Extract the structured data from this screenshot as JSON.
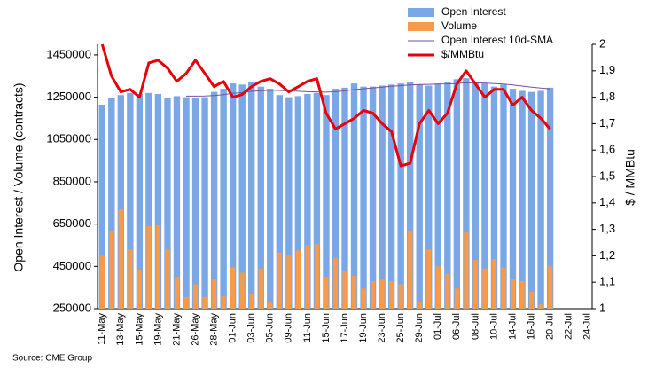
{
  "chart_data": {
    "type": "bar",
    "y_label": "Open Interest / Volume (contracts)",
    "y2_label": "$ / MMBtu",
    "source": "Source: CME Group",
    "categories": [
      "11-May",
      null,
      "13-May",
      null,
      "15-May",
      null,
      "19-May",
      null,
      "21-May",
      null,
      "26-May",
      null,
      "28-May",
      null,
      "01-Jun",
      null,
      "03-Jun",
      null,
      "05-Jun",
      null,
      "09-Jun",
      null,
      "11-Jun",
      null,
      "15-Jun",
      null,
      "17-Jun",
      null,
      "19-Jun",
      null,
      "23-Jun",
      null,
      "25-Jun",
      null,
      "29-Jun",
      null,
      "01-Jul",
      null,
      "06-Jul",
      null,
      "08-Jul",
      null,
      "10-Jul",
      null,
      "14-Jul",
      null,
      "16-Jul",
      null,
      "20-Jul",
      null,
      "22-Jul",
      null,
      "24-Jul"
    ],
    "series": [
      {
        "name": "Open Interest",
        "type": "bar",
        "color": "#7aa7e6",
        "values": [
          1215000,
          1245000,
          1260000,
          1270000,
          1265000,
          1270000,
          1265000,
          1245000,
          1255000,
          1250000,
          1245000,
          1250000,
          1275000,
          1290000,
          1315000,
          1310000,
          1320000,
          1300000,
          1290000,
          1260000,
          1250000,
          1255000,
          1265000,
          1270000,
          1260000,
          1290000,
          1295000,
          1315000,
          1300000,
          1300000,
          1305000,
          1310000,
          1315000,
          1320000,
          1310000,
          1305000,
          1315000,
          1320000,
          1335000,
          1340000,
          1320000,
          1315000,
          1300000,
          1310000,
          1290000,
          1280000,
          1275000,
          1280000,
          1295000,
          null,
          null,
          null,
          null
        ]
      },
      {
        "name": "Volume",
        "type": "bar",
        "color": "#f79a4a",
        "values": [
          500000,
          620000,
          720000,
          530000,
          435000,
          640000,
          645000,
          530000,
          400000,
          305000,
          365000,
          305000,
          390000,
          310000,
          445000,
          420000,
          320000,
          440000,
          280000,
          515000,
          500000,
          525000,
          550000,
          555000,
          400000,
          490000,
          430000,
          405000,
          345000,
          380000,
          390000,
          380000,
          365000,
          620000,
          280000,
          530000,
          450000,
          415000,
          345000,
          610000,
          480000,
          440000,
          485000,
          445000,
          390000,
          380000,
          330000,
          270000,
          450000,
          null,
          null,
          null,
          null
        ]
      },
      {
        "name": "Open Interest 10d-SMA",
        "type": "line",
        "color": "#7b4ea3",
        "width": 1,
        "values": [
          null,
          null,
          null,
          null,
          null,
          null,
          null,
          null,
          null,
          1255000,
          1255000,
          1256000,
          1258000,
          1262000,
          1268000,
          1272000,
          1278000,
          1280000,
          1283000,
          1282000,
          1280000,
          1278000,
          1276000,
          1275000,
          1274000,
          1276000,
          1280000,
          1286000,
          1290000,
          1294000,
          1298000,
          1302000,
          1305000,
          1308000,
          1310000,
          1311000,
          1312000,
          1313000,
          1315000,
          1318000,
          1318000,
          1317000,
          1314000,
          1312000,
          1308000,
          1303000,
          1298000,
          1293000,
          1290000,
          null,
          null,
          null,
          null
        ]
      },
      {
        "name": "$/MMBtu",
        "type": "line",
        "axis": "y2",
        "color": "#e8000b",
        "width": 3,
        "values": [
          2.0,
          1.88,
          1.82,
          1.83,
          1.8,
          1.93,
          1.94,
          1.91,
          1.86,
          1.89,
          1.94,
          1.89,
          1.84,
          1.86,
          1.8,
          1.81,
          1.84,
          1.86,
          1.87,
          1.85,
          1.82,
          1.84,
          1.86,
          1.87,
          1.74,
          1.68,
          1.7,
          1.72,
          1.75,
          1.74,
          1.7,
          1.67,
          1.54,
          1.55,
          1.7,
          1.75,
          1.7,
          1.74,
          1.85,
          1.9,
          1.85,
          1.8,
          1.83,
          1.83,
          1.77,
          1.8,
          1.75,
          1.72,
          1.68,
          null,
          null,
          null,
          null
        ]
      }
    ],
    "ylim": [
      250000,
      1500000
    ],
    "yticks": [
      250000,
      450000,
      650000,
      850000,
      1050000,
      1250000,
      1450000
    ],
    "y2lim": [
      1,
      2
    ],
    "y2ticks": [
      1,
      {
        "value": 1.1,
        "label": "1,1"
      },
      {
        "value": 1.2,
        "label": "1,2"
      },
      {
        "value": 1.3,
        "label": "1,3"
      },
      {
        "value": 1.4,
        "label": "1,4"
      },
      {
        "value": 1.5,
        "label": "1,5"
      },
      {
        "value": 1.6,
        "label": "1,6"
      },
      {
        "value": 1.7,
        "label": "1,7"
      },
      {
        "value": 1.8,
        "label": "1,8"
      },
      {
        "value": 1.9,
        "label": "1,9"
      },
      2
    ]
  }
}
